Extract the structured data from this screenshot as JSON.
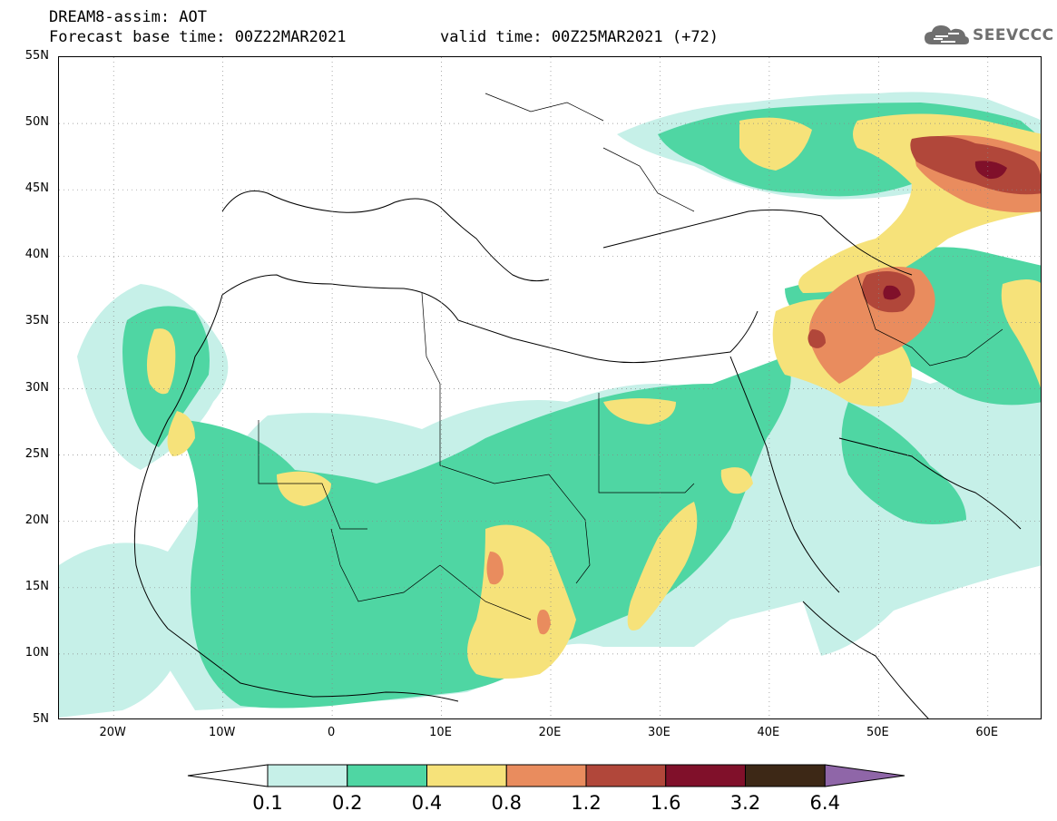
{
  "header": {
    "model_line": "DREAM8-assim: AOT",
    "forecast_line": "Forecast base time: 00Z22MAR2021",
    "valid_line": "valid time: 00Z25MAR2021 (+72)",
    "logo_text": "SEEVCCC"
  },
  "axes": {
    "lat_labels": [
      "55N",
      "50N",
      "45N",
      "40N",
      "35N",
      "30N",
      "25N",
      "20N",
      "15N",
      "10N",
      "5N"
    ],
    "lon_labels": [
      "20W",
      "10W",
      "0",
      "10E",
      "20E",
      "30E",
      "40E",
      "50E",
      "60E"
    ],
    "lon_range": [
      -25,
      65
    ],
    "lat_range": [
      5,
      55
    ],
    "grid": "dotted"
  },
  "legend": {
    "labels": [
      "0.1",
      "0.2",
      "0.4",
      "0.8",
      "1.2",
      "1.6",
      "3.2",
      "6.4"
    ],
    "colors": [
      "#ffffff",
      "#c6f0e8",
      "#4fd6a3",
      "#f6e27a",
      "#e98c5e",
      "#b1473a",
      "#80102a",
      "#3d2816",
      "#8f66a8"
    ]
  },
  "icons": {
    "logo": "cloud-icon"
  }
}
